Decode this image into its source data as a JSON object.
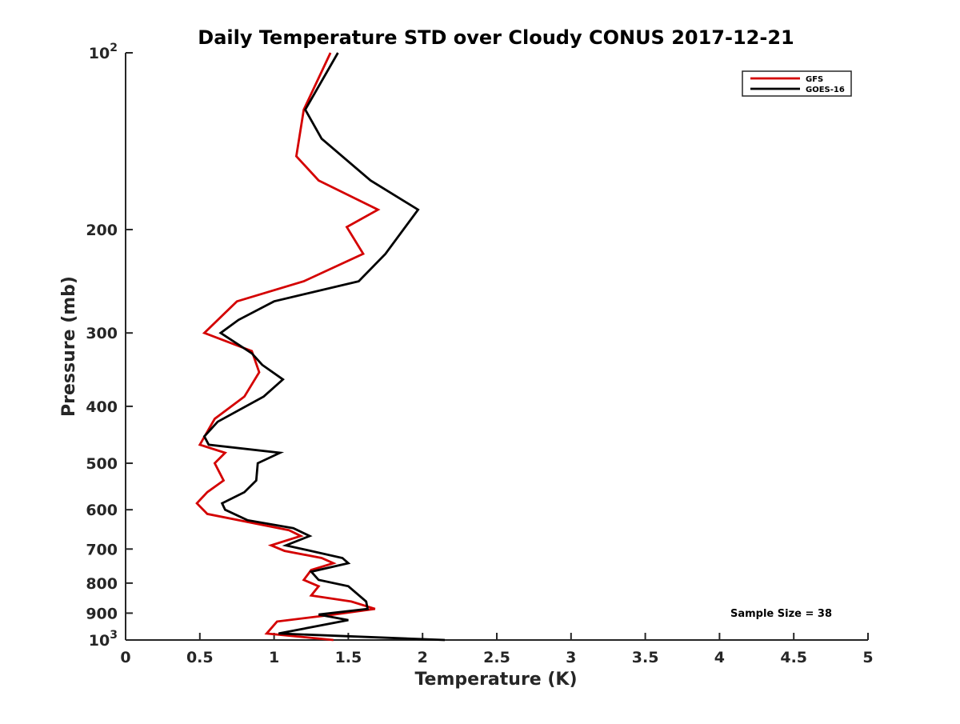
{
  "chart_data": {
    "type": "line",
    "title": "Daily Temperature STD over Cloudy CONUS 2017-12-21",
    "xlabel": "Temperature (K)",
    "ylabel": "Pressure (mb)",
    "xlim": [
      0,
      5
    ],
    "ylim": [
      100,
      1000
    ],
    "yscale": "log",
    "y_reversed": true,
    "x_ticks": [
      0,
      0.5,
      1,
      1.5,
      2,
      2.5,
      3,
      3.5,
      4,
      4.5,
      5
    ],
    "x_tick_labels": [
      "0",
      "0.5",
      "1",
      "1.5",
      "2",
      "2.5",
      "3",
      "3.5",
      "4",
      "4.5",
      "5"
    ],
    "y_ticks": [
      100,
      200,
      300,
      400,
      500,
      600,
      700,
      800,
      900,
      1000
    ],
    "y_tick_labels": [
      {
        "base": "10",
        "exp": "2"
      },
      {
        "base": "200",
        "exp": ""
      },
      {
        "base": "300",
        "exp": ""
      },
      {
        "base": "400",
        "exp": ""
      },
      {
        "base": "500",
        "exp": ""
      },
      {
        "base": "600",
        "exp": ""
      },
      {
        "base": "700",
        "exp": ""
      },
      {
        "base": "800",
        "exp": ""
      },
      {
        "base": "900",
        "exp": ""
      },
      {
        "base": "10",
        "exp": "3"
      }
    ],
    "legend_position": "top-right",
    "grid": false,
    "annotation": "Sample Size = 38",
    "series": [
      {
        "name": "GFS",
        "color": "#d40000",
        "points": [
          [
            1.38,
            100
          ],
          [
            1.2,
            125
          ],
          [
            1.15,
            150
          ],
          [
            1.3,
            165
          ],
          [
            1.7,
            185
          ],
          [
            1.49,
            198
          ],
          [
            1.6,
            220
          ],
          [
            1.2,
            245
          ],
          [
            0.75,
            265
          ],
          [
            0.53,
            300
          ],
          [
            0.85,
            322
          ],
          [
            0.9,
            350
          ],
          [
            0.8,
            385
          ],
          [
            0.6,
            420
          ],
          [
            0.5,
            465
          ],
          [
            0.67,
            480
          ],
          [
            0.6,
            500
          ],
          [
            0.66,
            535
          ],
          [
            0.55,
            560
          ],
          [
            0.48,
            585
          ],
          [
            0.55,
            610
          ],
          [
            1.1,
            650
          ],
          [
            1.18,
            665
          ],
          [
            0.98,
            690
          ],
          [
            1.07,
            705
          ],
          [
            1.32,
            725
          ],
          [
            1.4,
            740
          ],
          [
            1.25,
            760
          ],
          [
            1.2,
            790
          ],
          [
            1.3,
            810
          ],
          [
            1.25,
            840
          ],
          [
            1.52,
            860
          ],
          [
            1.68,
            885
          ],
          [
            1.4,
            905
          ],
          [
            1.02,
            930
          ],
          [
            0.95,
            975
          ],
          [
            1.4,
            1000
          ]
        ]
      },
      {
        "name": "GOES-16",
        "color": "#000000",
        "points": [
          [
            1.43,
            100
          ],
          [
            1.21,
            125
          ],
          [
            1.32,
            140
          ],
          [
            1.65,
            165
          ],
          [
            1.97,
            185
          ],
          [
            1.75,
            220
          ],
          [
            1.57,
            245
          ],
          [
            1.0,
            265
          ],
          [
            0.76,
            285
          ],
          [
            0.64,
            300
          ],
          [
            0.85,
            325
          ],
          [
            0.92,
            340
          ],
          [
            1.06,
            360
          ],
          [
            0.93,
            385
          ],
          [
            0.62,
            425
          ],
          [
            0.53,
            450
          ],
          [
            0.56,
            465
          ],
          [
            1.04,
            480
          ],
          [
            0.89,
            500
          ],
          [
            0.88,
            535
          ],
          [
            0.8,
            560
          ],
          [
            0.65,
            585
          ],
          [
            0.67,
            600
          ],
          [
            0.82,
            625
          ],
          [
            1.13,
            645
          ],
          [
            1.24,
            665
          ],
          [
            1.08,
            690
          ],
          [
            1.46,
            725
          ],
          [
            1.5,
            740
          ],
          [
            1.25,
            765
          ],
          [
            1.3,
            790
          ],
          [
            1.5,
            810
          ],
          [
            1.62,
            860
          ],
          [
            1.63,
            885
          ],
          [
            1.3,
            905
          ],
          [
            1.5,
            925
          ],
          [
            1.03,
            975
          ],
          [
            2.15,
            1000
          ]
        ]
      }
    ]
  }
}
